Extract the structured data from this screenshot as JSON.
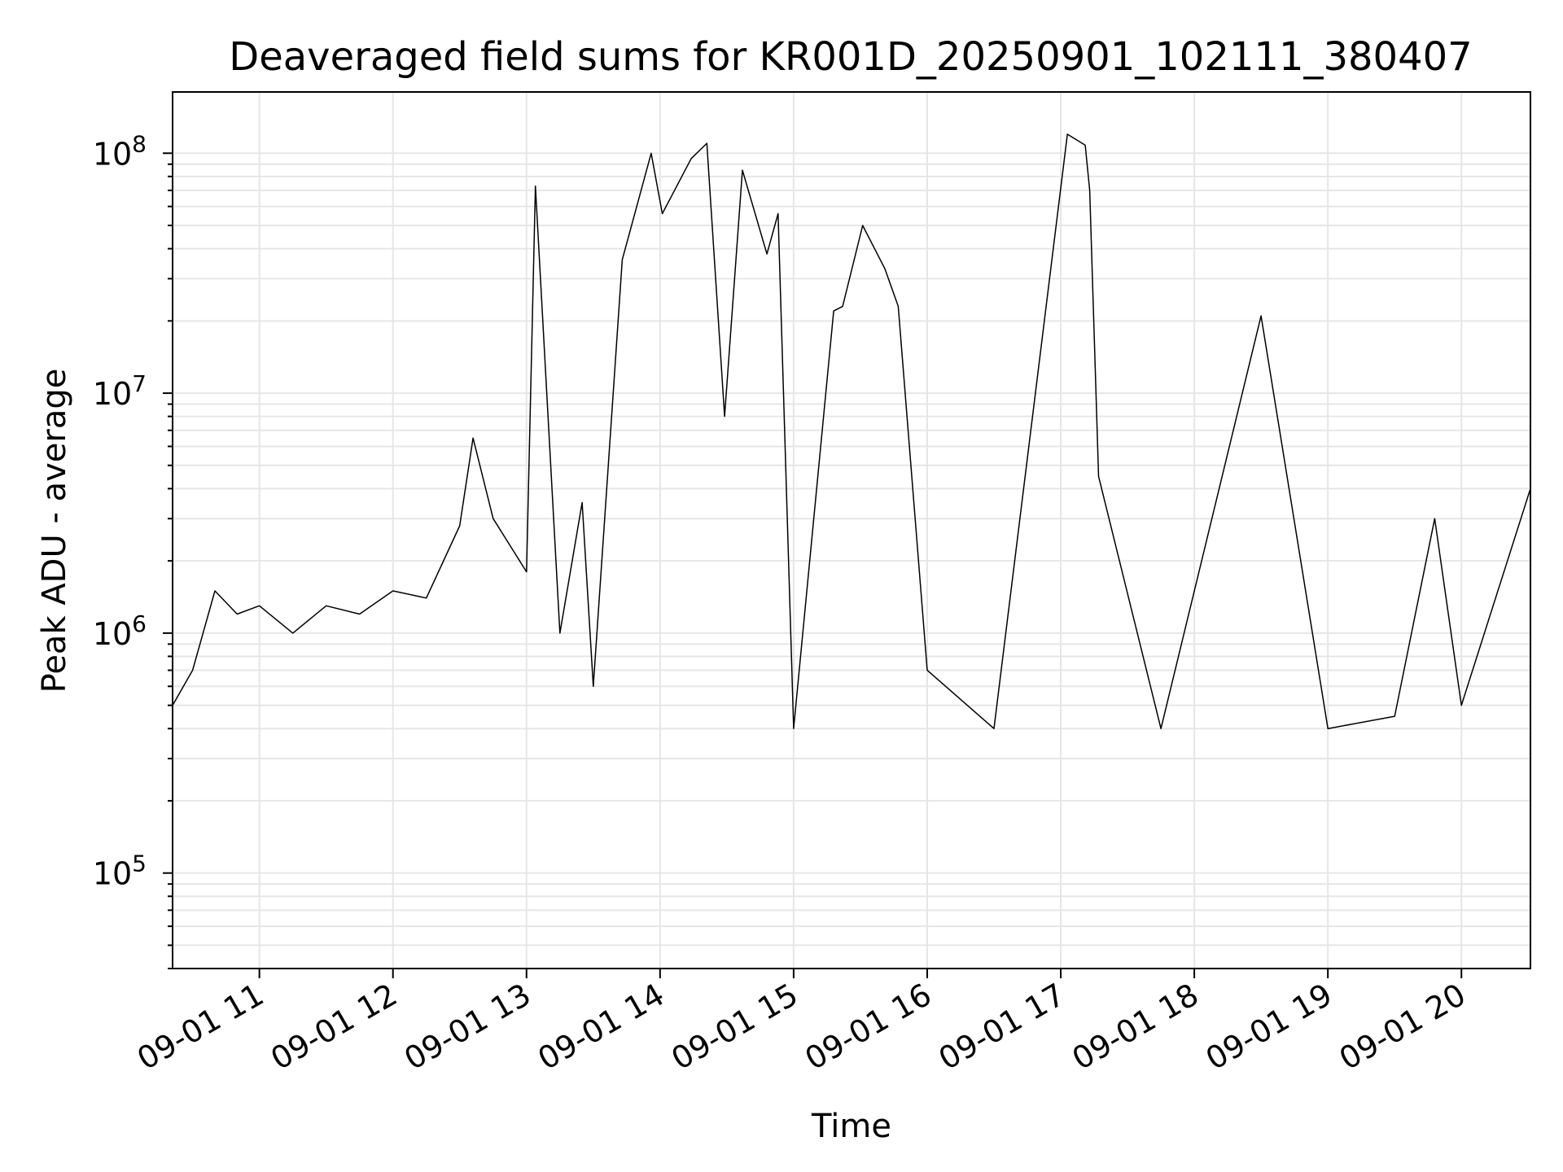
{
  "chart_data": {
    "type": "line",
    "title": "Deaveraged field sums for KR001D_20250901_102111_380407",
    "xlabel": "Time",
    "ylabel": "Peak ADU - average",
    "yscale": "log",
    "ylim": [
      40000,
      180000000
    ],
    "xlim": [
      "2025-09-01 10:21",
      "2025-09-01 20:31"
    ],
    "grid": true,
    "line_color": "#000000",
    "grid_color": "#e6e6e6",
    "x_ticks": [
      "2025-09-01 11:00",
      "2025-09-01 12:00",
      "2025-09-01 13:00",
      "2025-09-01 14:00",
      "2025-09-01 15:00",
      "2025-09-01 16:00",
      "2025-09-01 17:00",
      "2025-09-01 18:00",
      "2025-09-01 19:00",
      "2025-09-01 20:00"
    ],
    "x_tick_labels": [
      "09-01 11",
      "09-01 12",
      "09-01 13",
      "09-01 14",
      "09-01 15",
      "09-01 16",
      "09-01 17",
      "09-01 18",
      "09-01 19",
      "09-01 20"
    ],
    "y_ticks": [
      100000,
      1000000,
      10000000,
      100000000
    ],
    "y_tick_labels": [
      {
        "base": "10",
        "exp": "5"
      },
      {
        "base": "10",
        "exp": "6"
      },
      {
        "base": "10",
        "exp": "7"
      },
      {
        "base": "10",
        "exp": "8"
      }
    ],
    "series": [
      {
        "x": [
          "2025-09-01 10:21",
          "2025-09-01 10:30",
          "2025-09-01 10:40",
          "2025-09-01 10:50",
          "2025-09-01 11:00",
          "2025-09-01 11:15",
          "2025-09-01 11:30",
          "2025-09-01 11:45",
          "2025-09-01 12:00",
          "2025-09-01 12:15",
          "2025-09-01 12:30",
          "2025-09-01 12:36",
          "2025-09-01 12:45",
          "2025-09-01 13:00",
          "2025-09-01 13:04",
          "2025-09-01 13:15",
          "2025-09-01 13:25",
          "2025-09-01 13:30",
          "2025-09-01 13:43",
          "2025-09-01 13:56",
          "2025-09-01 14:01",
          "2025-09-01 14:14",
          "2025-09-01 14:21",
          "2025-09-01 14:29",
          "2025-09-01 14:37",
          "2025-09-01 14:48",
          "2025-09-01 14:53",
          "2025-09-01 15:00",
          "2025-09-01 15:18",
          "2025-09-01 15:22",
          "2025-09-01 15:31",
          "2025-09-01 15:41",
          "2025-09-01 15:47",
          "2025-09-01 16:00",
          "2025-09-01 16:30",
          "2025-09-01 17:03",
          "2025-09-01 17:11",
          "2025-09-01 17:13",
          "2025-09-01 17:17",
          "2025-09-01 17:45",
          "2025-09-01 18:30",
          "2025-09-01 19:00",
          "2025-09-01 19:30",
          "2025-09-01 19:48",
          "2025-09-01 20:00",
          "2025-09-01 20:31"
        ],
        "y": [
          500000,
          700000,
          1500000,
          1200000,
          1300000,
          1000000,
          1300000,
          1200000,
          1500000,
          1400000,
          2800000,
          6500000,
          3000000,
          1800000,
          73000000,
          1000000,
          3500000,
          600000,
          36000000,
          100000000,
          56000000,
          95000000,
          110000000,
          8000000,
          85000000,
          38000000,
          56000000,
          400000,
          22000000,
          23000000,
          50000000,
          33000000,
          23000000,
          700000,
          400000,
          120000000,
          108000000,
          70000000,
          4500000,
          400000,
          21000000,
          400000,
          450000,
          3000000,
          500000,
          4000000
        ]
      }
    ]
  }
}
